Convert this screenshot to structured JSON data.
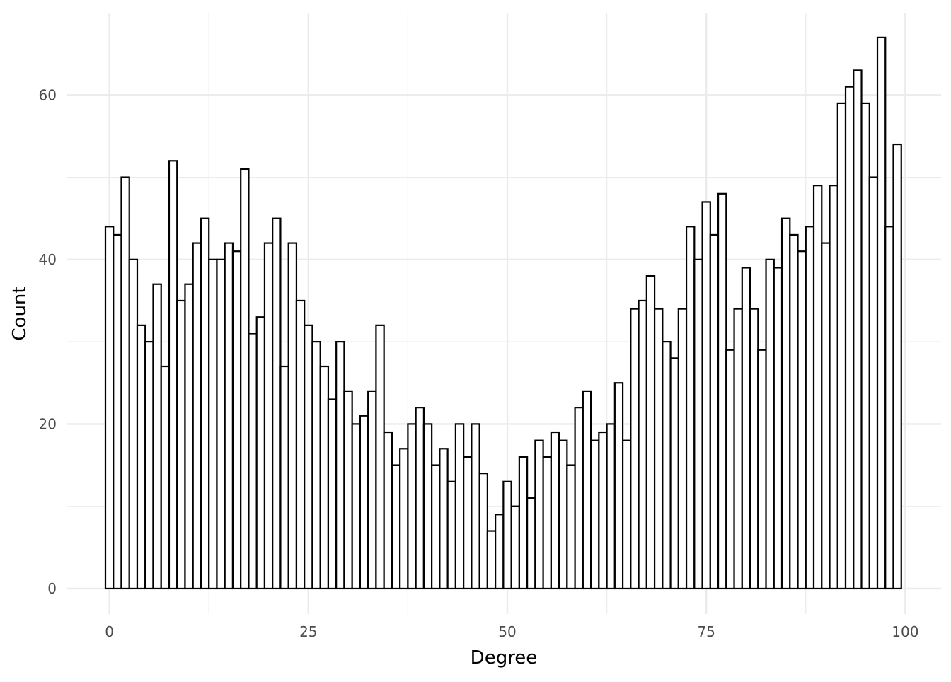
{
  "chart_data": {
    "type": "histogram",
    "x_label": "Degree",
    "y_label": "Count",
    "bins": [
      -0.5,
      0.5,
      1.5,
      2.5,
      3.5,
      4.5,
      5.5,
      6.5,
      7.5,
      8.5,
      9.5,
      10.5,
      11.5,
      12.5,
      13.5,
      14.5,
      15.5,
      16.5,
      17.5,
      18.5,
      19.5,
      20.5,
      21.5,
      22.5,
      23.5,
      24.5,
      25.5,
      26.5,
      27.5,
      28.5,
      29.5,
      30.5,
      31.5,
      32.5,
      33.5,
      34.5,
      35.5,
      36.5,
      37.5,
      38.5,
      39.5,
      40.5,
      41.5,
      42.5,
      43.5,
      44.5,
      45.5,
      46.5,
      47.5,
      48.5,
      49.5,
      50.5,
      51.5,
      52.5,
      53.5,
      54.5,
      55.5,
      56.5,
      57.5,
      58.5,
      59.5,
      60.5,
      61.5,
      62.5,
      63.5,
      64.5,
      65.5,
      66.5,
      67.5,
      68.5,
      69.5,
      70.5,
      71.5,
      72.5,
      73.5,
      74.5,
      75.5,
      76.5,
      77.5,
      78.5,
      79.5,
      80.5,
      81.5,
      82.5,
      83.5,
      84.5,
      85.5,
      86.5,
      87.5,
      88.5,
      89.5,
      90.5,
      91.5,
      92.5,
      93.5,
      94.5,
      95.5,
      96.5,
      97.5,
      98.5,
      99.5
    ],
    "counts": [
      44,
      43,
      50,
      40,
      32,
      30,
      37,
      27,
      52,
      35,
      37,
      42,
      45,
      40,
      40,
      42,
      41,
      51,
      31,
      33,
      42,
      45,
      27,
      42,
      35,
      32,
      30,
      27,
      23,
      30,
      24,
      20,
      21,
      24,
      32,
      19,
      15,
      17,
      20,
      22,
      20,
      15,
      17,
      13,
      20,
      16,
      20,
      14,
      7,
      9,
      13,
      10,
      16,
      11,
      18,
      16,
      19,
      18,
      15,
      22,
      24,
      18,
      19,
      20,
      25,
      18,
      34,
      35,
      38,
      34,
      30,
      28,
      34,
      44,
      40,
      47,
      43,
      48,
      29,
      34,
      39,
      34,
      29,
      40,
      39,
      45,
      43,
      41,
      44,
      49,
      42,
      49,
      59,
      61,
      63,
      59,
      50,
      67,
      44,
      54
    ],
    "fill": "#ffffff",
    "edge_color": "#000000",
    "xlim": [
      -5.3,
      104.5
    ],
    "ylim": [
      -3.1,
      70
    ],
    "xticks": [
      0,
      25,
      50,
      75,
      100
    ],
    "yticks": [
      0,
      20,
      40,
      60
    ],
    "minor_xticks": [
      12.5,
      37.5,
      62.5,
      87.5
    ],
    "minor_yticks": [
      10,
      30,
      50
    ],
    "grid": true
  }
}
